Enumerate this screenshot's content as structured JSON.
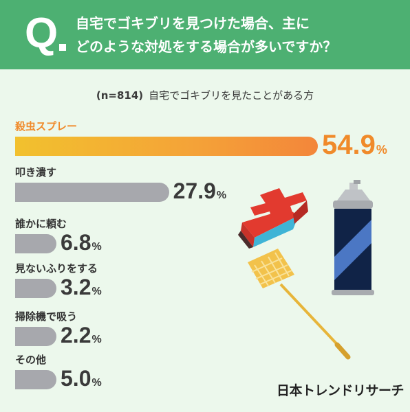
{
  "question": {
    "marker": "Q",
    "line1": "自宅でゴキブリを見つけた場合、主に",
    "line2": "どのような対処をする場合が多いですか？"
  },
  "subtitle": {
    "sample": "(n=814)",
    "respondents": "自宅でゴキブリを見たことがある方"
  },
  "chart_data": {
    "type": "bar",
    "orientation": "horizontal",
    "categories": [
      "殺虫スプレー",
      "叩き潰す",
      "誰かに頼む",
      "見ないふりをする",
      "掃除機で吸う",
      "その他"
    ],
    "values": [
      54.9,
      27.9,
      6.8,
      3.2,
      2.2,
      5.0
    ],
    "value_labels": [
      "54.9",
      "27.9",
      "6.8",
      "3.2",
      "2.2",
      "5.0"
    ],
    "unit": "%",
    "highlight_color": "#f08a2a",
    "bar_color": "#a7a8ad"
  },
  "illustrations": [
    "dustpan-icon",
    "spray-can-icon",
    "fly-swatter-icon"
  ],
  "brand": "日本トレンドリサーチ",
  "colors": {
    "header_bg": "#4db072",
    "page_bg": "#ecf8ec"
  }
}
